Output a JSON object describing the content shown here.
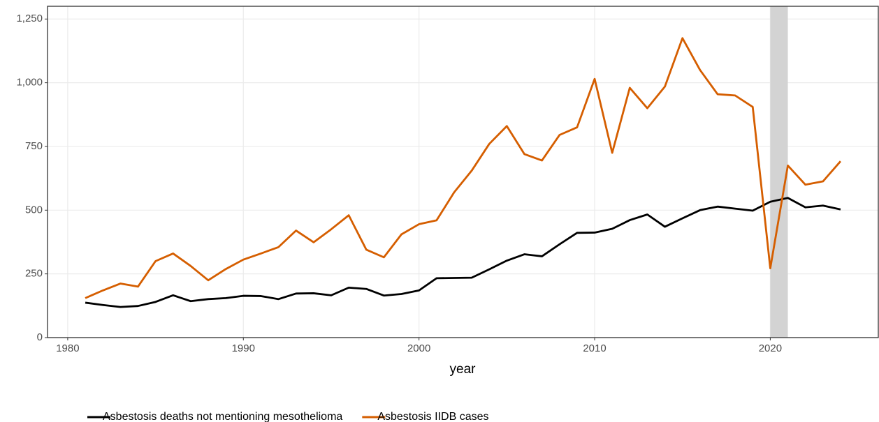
{
  "chart_data": {
    "type": "line",
    "x_label": "year",
    "x": [
      1981,
      1982,
      1983,
      1984,
      1985,
      1986,
      1987,
      1988,
      1989,
      1990,
      1991,
      1992,
      1993,
      1994,
      1995,
      1996,
      1997,
      1998,
      1999,
      2000,
      2001,
      2002,
      2003,
      2004,
      2005,
      2006,
      2007,
      2008,
      2009,
      2010,
      2011,
      2012,
      2013,
      2014,
      2015,
      2016,
      2017,
      2018,
      2019,
      2020,
      2021,
      2022,
      2023,
      2024
    ],
    "series": [
      {
        "name": "Asbestosis deaths not mentioning mesothelioma",
        "color": "#000000",
        "values": [
          137,
          128,
          120,
          124,
          140,
          166,
          143,
          151,
          155,
          164,
          163,
          151,
          173,
          174,
          166,
          196,
          191,
          165,
          171,
          185,
          233,
          234,
          235,
          268,
          302,
          327,
          319,
          366,
          411,
          412,
          427,
          461,
          483,
          435,
          468,
          500,
          514,
          506,
          498,
          533,
          548,
          511,
          518,
          503
        ]
      },
      {
        "name": "Asbestosis IIDB cases",
        "color": "#d55e00",
        "values": [
          155,
          185,
          212,
          200,
          300,
          330,
          281,
          225,
          269,
          306,
          330,
          355,
          420,
          374,
          425,
          480,
          345,
          315,
          405,
          445,
          460,
          570,
          655,
          760,
          830,
          720,
          695,
          795,
          825,
          1015,
          725,
          980,
          900,
          985,
          1175,
          1050,
          955,
          950,
          905,
          272,
          675,
          600,
          613,
          692
        ]
      }
    ],
    "shade": [
      2020,
      2021
    ],
    "shade_color": "#d3d3d3",
    "xlim": [
      1978.85,
      2026.15
    ],
    "xticks": [
      1980,
      1990,
      2000,
      2010,
      2020
    ],
    "ylim": [
      0,
      1300
    ],
    "yticks": [
      0,
      250,
      500,
      750,
      {
        "value": 1000,
        "label": "1,000"
      },
      {
        "value": 1250,
        "label": "1,250"
      }
    ],
    "grid": true,
    "legend": "bottom-left"
  }
}
